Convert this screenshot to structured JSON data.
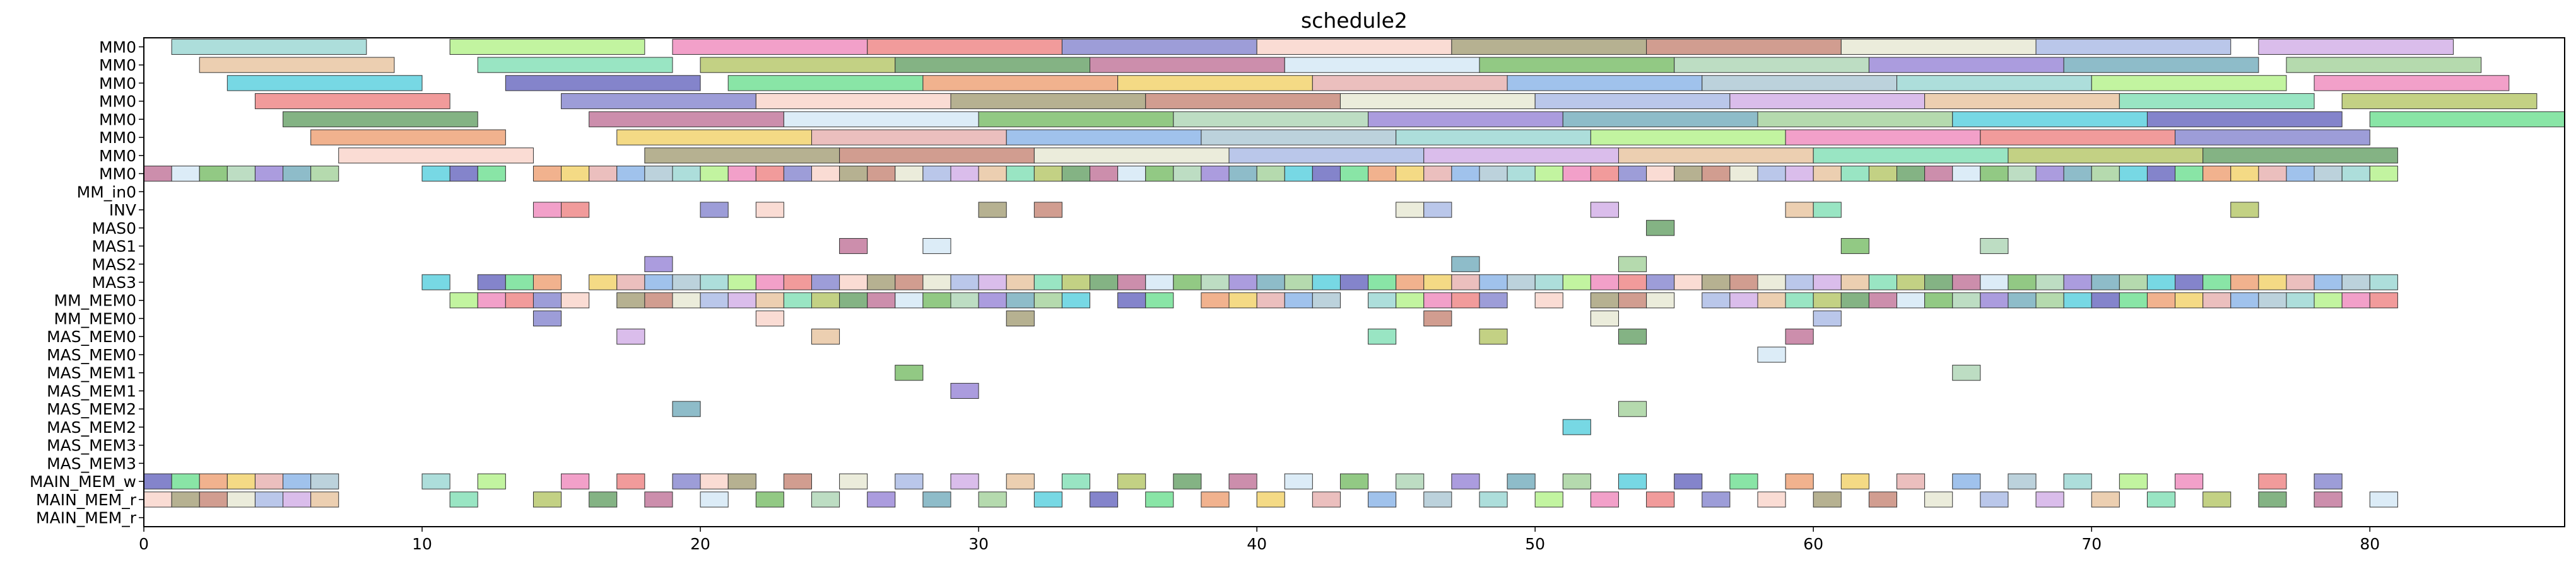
{
  "chart_data": {
    "type": "gantt",
    "title": "schedule2",
    "xlabel": "",
    "ylabel": "",
    "xlim": [
      0,
      87
    ],
    "x_ticks": [
      0,
      10,
      20,
      30,
      40,
      50,
      60,
      70,
      80
    ],
    "grid": false,
    "legend": "none",
    "rows": [
      "MM0",
      "MM0",
      "MM0",
      "MM0",
      "MM0",
      "MM0",
      "MM0",
      "MM0",
      "MM_in0",
      "INV",
      "MAS0",
      "MAS1",
      "MAS2",
      "MAS3",
      "MM_MEM0",
      "MM_MEM0",
      "MAS_MEM0",
      "MAS_MEM0",
      "MAS_MEM1",
      "MAS_MEM1",
      "MAS_MEM2",
      "MAS_MEM2",
      "MAS_MEM3",
      "MAS_MEM3",
      "MAIN_MEM_w",
      "MAIN_MEM_r",
      "MAIN_MEM_r"
    ],
    "palette": [
      "#9fd8d5",
      "#b9c96f",
      "#f2d470",
      "#aebde6",
      "#5fd1df",
      "#f9d6cc",
      "#b2d7b8",
      "#b7f28f",
      "#6ea66f",
      "#e7b4b3",
      "#d3b1e8",
      "#6e6ec2",
      "#a9a37e",
      "#9c8bd8",
      "#f08fc0",
      "#c37a9e",
      "#8fb7e9",
      "#e9c7a3",
      "#74e096",
      "#c98c7c",
      "#7ab0c0",
      "#ef8a8a",
      "#d6e9f6",
      "#b0cad6",
      "#87e1b8",
      "#efa57a",
      "#e7e9d5",
      "#a8d4a0",
      "#8c8cd1",
      "#7fbf6f"
    ],
    "bars": [
      {
        "row": 0,
        "start": 1,
        "end": 8
      },
      {
        "row": 0,
        "start": 11,
        "end": 18
      },
      {
        "row": 0,
        "start": 19,
        "end": 26
      },
      {
        "row": 0,
        "start": 26,
        "end": 33
      },
      {
        "row": 0,
        "start": 33,
        "end": 40
      },
      {
        "row": 0,
        "start": 40,
        "end": 47
      },
      {
        "row": 0,
        "start": 47,
        "end": 54
      },
      {
        "row": 0,
        "start": 54,
        "end": 61
      },
      {
        "row": 0,
        "start": 61,
        "end": 68
      },
      {
        "row": 0,
        "start": 68,
        "end": 75
      },
      {
        "row": 0,
        "start": 76,
        "end": 83
      },
      {
        "row": 1,
        "start": 2,
        "end": 9
      },
      {
        "row": 1,
        "start": 12,
        "end": 19
      },
      {
        "row": 1,
        "start": 20,
        "end": 27
      },
      {
        "row": 1,
        "start": 27,
        "end": 34
      },
      {
        "row": 1,
        "start": 34,
        "end": 41
      },
      {
        "row": 1,
        "start": 41,
        "end": 48
      },
      {
        "row": 1,
        "start": 48,
        "end": 55
      },
      {
        "row": 1,
        "start": 55,
        "end": 62
      },
      {
        "row": 1,
        "start": 62,
        "end": 69
      },
      {
        "row": 1,
        "start": 69,
        "end": 76
      },
      {
        "row": 1,
        "start": 77,
        "end": 84
      },
      {
        "row": 2,
        "start": 3,
        "end": 10
      },
      {
        "row": 2,
        "start": 13,
        "end": 20
      },
      {
        "row": 2,
        "start": 21,
        "end": 28
      },
      {
        "row": 2,
        "start": 28,
        "end": 35
      },
      {
        "row": 2,
        "start": 35,
        "end": 42
      },
      {
        "row": 2,
        "start": 42,
        "end": 49
      },
      {
        "row": 2,
        "start": 49,
        "end": 56
      },
      {
        "row": 2,
        "start": 56,
        "end": 63
      },
      {
        "row": 2,
        "start": 63,
        "end": 70
      },
      {
        "row": 2,
        "start": 70,
        "end": 77
      },
      {
        "row": 2,
        "start": 78,
        "end": 85
      },
      {
        "row": 3,
        "start": 4,
        "end": 11
      },
      {
        "row": 3,
        "start": 15,
        "end": 22
      },
      {
        "row": 3,
        "start": 22,
        "end": 29
      },
      {
        "row": 3,
        "start": 29,
        "end": 36
      },
      {
        "row": 3,
        "start": 36,
        "end": 43
      },
      {
        "row": 3,
        "start": 43,
        "end": 50
      },
      {
        "row": 3,
        "start": 50,
        "end": 57
      },
      {
        "row": 3,
        "start": 57,
        "end": 64
      },
      {
        "row": 3,
        "start": 64,
        "end": 71
      },
      {
        "row": 3,
        "start": 71,
        "end": 78
      },
      {
        "row": 3,
        "start": 79,
        "end": 86
      },
      {
        "row": 4,
        "start": 5,
        "end": 12
      },
      {
        "row": 4,
        "start": 16,
        "end": 23
      },
      {
        "row": 4,
        "start": 23,
        "end": 30
      },
      {
        "row": 4,
        "start": 30,
        "end": 37
      },
      {
        "row": 4,
        "start": 37,
        "end": 44
      },
      {
        "row": 4,
        "start": 44,
        "end": 51
      },
      {
        "row": 4,
        "start": 51,
        "end": 58
      },
      {
        "row": 4,
        "start": 58,
        "end": 65
      },
      {
        "row": 4,
        "start": 65,
        "end": 72
      },
      {
        "row": 4,
        "start": 72,
        "end": 79
      },
      {
        "row": 4,
        "start": 80,
        "end": 87
      },
      {
        "row": 5,
        "start": 6,
        "end": 13
      },
      {
        "row": 5,
        "start": 17,
        "end": 24
      },
      {
        "row": 5,
        "start": 24,
        "end": 31
      },
      {
        "row": 5,
        "start": 31,
        "end": 38
      },
      {
        "row": 5,
        "start": 38,
        "end": 45
      },
      {
        "row": 5,
        "start": 45,
        "end": 52
      },
      {
        "row": 5,
        "start": 52,
        "end": 59
      },
      {
        "row": 5,
        "start": 59,
        "end": 66
      },
      {
        "row": 5,
        "start": 66,
        "end": 73
      },
      {
        "row": 5,
        "start": 73,
        "end": 80
      },
      {
        "row": 6,
        "start": 7,
        "end": 14
      },
      {
        "row": 6,
        "start": 18,
        "end": 25
      },
      {
        "row": 6,
        "start": 25,
        "end": 32
      },
      {
        "row": 6,
        "start": 32,
        "end": 39
      },
      {
        "row": 6,
        "start": 39,
        "end": 46
      },
      {
        "row": 6,
        "start": 46,
        "end": 53
      },
      {
        "row": 6,
        "start": 53,
        "end": 60
      },
      {
        "row": 6,
        "start": 60,
        "end": 67
      },
      {
        "row": 6,
        "start": 67,
        "end": 74
      },
      {
        "row": 6,
        "start": 74,
        "end": 81
      }
    ],
    "unit_rows": [
      {
        "row": 7,
        "starts": [
          0,
          1,
          2,
          3,
          4,
          5,
          6,
          10,
          11,
          12,
          14,
          15,
          16,
          17,
          18,
          19,
          20,
          21,
          22,
          23,
          24,
          25,
          26,
          27,
          28,
          29,
          30,
          31,
          32,
          33,
          34,
          35,
          36,
          37,
          38,
          39,
          40,
          41,
          42,
          43,
          44,
          45,
          46,
          47,
          48,
          49,
          50,
          51,
          52,
          53,
          54,
          55,
          56,
          57,
          58,
          59,
          60,
          61,
          62,
          63,
          64,
          65,
          66,
          67,
          68,
          69,
          70,
          71,
          72,
          73,
          74,
          75,
          76,
          77,
          78,
          79,
          80
        ]
      },
      {
        "row": 9,
        "starts": [
          14,
          15,
          20,
          22,
          30,
          32,
          45,
          46,
          52,
          59,
          60,
          75
        ]
      },
      {
        "row": 10,
        "starts": [
          54
        ]
      },
      {
        "row": 11,
        "starts": [
          25,
          28,
          61,
          66
        ]
      },
      {
        "row": 12,
        "starts": [
          18,
          47,
          53
        ]
      },
      {
        "row": 13,
        "starts": [
          10,
          12,
          13,
          14,
          16,
          17,
          18,
          19,
          20,
          21,
          22,
          23,
          24,
          25,
          26,
          27,
          28,
          29,
          30,
          31,
          32,
          33,
          34,
          35,
          36,
          37,
          38,
          39,
          40,
          41,
          42,
          43,
          44,
          45,
          46,
          47,
          48,
          49,
          50,
          51,
          52,
          53,
          54,
          55,
          56,
          57,
          58,
          59,
          60,
          61,
          62,
          63,
          64,
          65,
          66,
          67,
          68,
          69,
          70,
          71,
          72,
          73,
          74,
          75,
          76,
          77,
          78,
          79,
          80
        ]
      },
      {
        "row": 14,
        "starts": [
          11,
          12,
          13,
          14,
          15,
          17,
          18,
          19,
          20,
          21,
          22,
          23,
          24,
          25,
          26,
          27,
          28,
          29,
          30,
          31,
          32,
          33,
          35,
          36,
          38,
          39,
          40,
          41,
          42,
          44,
          45,
          46,
          47,
          48,
          50,
          52,
          53,
          54,
          56,
          57,
          58,
          59,
          60,
          61,
          62,
          63,
          64,
          65,
          66,
          67,
          68,
          69,
          70,
          71,
          72,
          73,
          74,
          75,
          76,
          77,
          78,
          79,
          80
        ]
      },
      {
        "row": 15,
        "starts": [
          14,
          22,
          31,
          46,
          52,
          60
        ]
      },
      {
        "row": 16,
        "starts": [
          17,
          24,
          44,
          48,
          53,
          59
        ]
      },
      {
        "row": 17,
        "starts": [
          58
        ]
      },
      {
        "row": 18,
        "starts": [
          27,
          65
        ]
      },
      {
        "row": 19,
        "starts": [
          29
        ]
      },
      {
        "row": 20,
        "starts": [
          19,
          53
        ]
      },
      {
        "row": 21,
        "starts": [
          51
        ]
      },
      {
        "row": 24,
        "starts": [
          0,
          1,
          2,
          3,
          4,
          5,
          6,
          10,
          12,
          15,
          17,
          19,
          20,
          21,
          23,
          25,
          27,
          29,
          31,
          33,
          35,
          37,
          39,
          41,
          43,
          45,
          47,
          49,
          51,
          53,
          55,
          57,
          59,
          61,
          63,
          65,
          67,
          69,
          71,
          73,
          76,
          78
        ]
      },
      {
        "row": 25,
        "starts": [
          0,
          1,
          2,
          3,
          4,
          5,
          6,
          11,
          14,
          16,
          18,
          20,
          22,
          24,
          26,
          28,
          30,
          32,
          34,
          36,
          38,
          40,
          42,
          44,
          46,
          48,
          50,
          52,
          54,
          56,
          58,
          60,
          62,
          64,
          66,
          68,
          70,
          72,
          74,
          76,
          78,
          80
        ]
      }
    ]
  }
}
